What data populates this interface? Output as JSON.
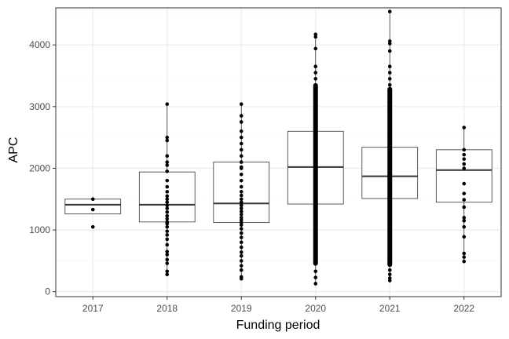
{
  "chart_data": {
    "type": "box",
    "xlabel": "Funding period",
    "ylabel": "APC",
    "ylim": [
      -80,
      4600
    ],
    "yticks": [
      0,
      1000,
      2000,
      3000,
      4000
    ],
    "y_minor_ticks": [
      500,
      1500,
      2500,
      3500,
      4500
    ],
    "grid": true,
    "theme": "bw",
    "colors": {
      "box_line": "#333333",
      "point": "#000000",
      "grid_major": "#ebebeb",
      "grid_minor": "#f5f5f5",
      "panel_border": "#333333"
    },
    "categories": [
      "2017",
      "2018",
      "2019",
      "2020",
      "2021",
      "2022"
    ],
    "boxes": [
      {
        "category": "2017",
        "lower_whisker": 1260,
        "q1": 1260,
        "median": 1410,
        "q3": 1500,
        "upper_whisker": 1500,
        "points": [
          1050,
          1330,
          1500
        ]
      },
      {
        "category": "2018",
        "lower_whisker": 280,
        "q1": 1130,
        "median": 1410,
        "q3": 1940,
        "upper_whisker": 3040,
        "points": [
          280,
          330,
          460,
          520,
          600,
          650,
          760,
          850,
          920,
          980,
          1050,
          1100,
          1130,
          1180,
          1230,
          1290,
          1350,
          1400,
          1450,
          1500,
          1550,
          1620,
          1700,
          1800,
          1950,
          2050,
          2100,
          2200,
          2450,
          2500,
          3040
        ]
      },
      {
        "category": "2019",
        "lower_whisker": 210,
        "q1": 1120,
        "median": 1430,
        "q3": 2100,
        "upper_whisker": 3040,
        "points": [
          210,
          240,
          350,
          420,
          500,
          580,
          640,
          720,
          800,
          880,
          950,
          1020,
          1080,
          1120,
          1160,
          1200,
          1250,
          1300,
          1350,
          1400,
          1450,
          1500,
          1560,
          1620,
          1700,
          1800,
          1900,
          2000,
          2020,
          2100,
          2200,
          2300,
          2400,
          2500,
          2600,
          2750,
          2850,
          3040
        ]
      },
      {
        "category": "2020",
        "lower_whisker": 130,
        "q1": 1420,
        "median": 2020,
        "q3": 2600,
        "upper_whisker": 4170,
        "points": [
          130,
          230,
          330,
          3450,
          3550,
          3650,
          3940,
          4130,
          4170
        ],
        "dense_range": [
          420,
          3380
        ]
      },
      {
        "category": "2021",
        "lower_whisker": 180,
        "q1": 1510,
        "median": 1870,
        "q3": 2340,
        "upper_whisker": 4540,
        "points": [
          180,
          220,
          280,
          350,
          3350,
          3450,
          3550,
          3650,
          3900,
          4020,
          4060,
          4540
        ],
        "dense_range": [
          400,
          3320
        ]
      },
      {
        "category": "2022",
        "lower_whisker": 490,
        "q1": 1450,
        "median": 1970,
        "q3": 2300,
        "upper_whisker": 2660,
        "points": [
          490,
          560,
          620,
          890,
          1050,
          1150,
          1200,
          1370,
          1490,
          1590,
          1750,
          2000,
          2070,
          2150,
          2220,
          2300,
          2660
        ]
      }
    ]
  }
}
